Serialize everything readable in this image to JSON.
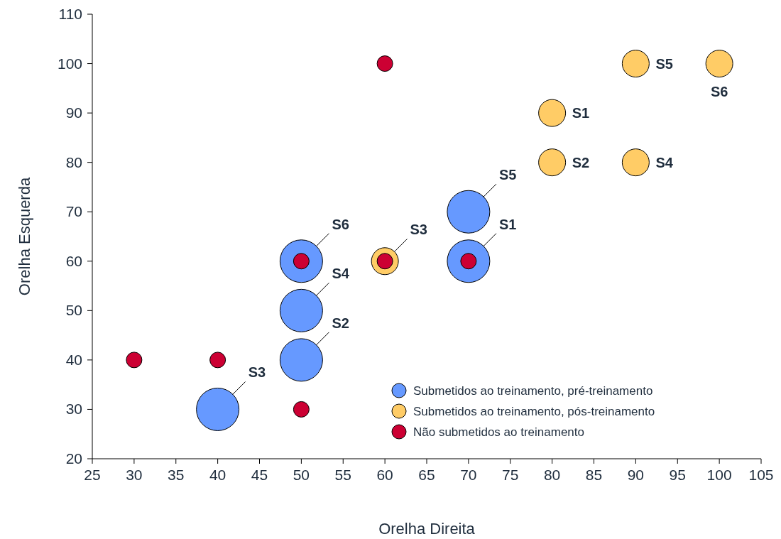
{
  "chart_data": {
    "type": "scatter",
    "xlabel": "Orelha Direita",
    "ylabel": "Orelha Esquerda",
    "xlim": [
      25,
      105
    ],
    "xticks": [
      25,
      30,
      35,
      40,
      45,
      50,
      55,
      60,
      65,
      70,
      75,
      80,
      85,
      90,
      95,
      100,
      105
    ],
    "ylim": [
      20,
      110
    ],
    "yticks": [
      20,
      30,
      40,
      50,
      60,
      70,
      80,
      90,
      100,
      110
    ],
    "marker": "circle",
    "legend": "bottom right",
    "grid": false,
    "series": [
      {
        "name": "Submetidos ao treinamento, pré-treinamento",
        "color": "#6699ff",
        "x": [
          70,
          50,
          40,
          50,
          70,
          50
        ],
        "values": [
          60,
          40,
          30,
          50,
          70,
          60
        ]
      },
      {
        "name": "Submetidos ao treinamento, pós-treinamento",
        "color": "#ffcc66",
        "x": [
          80,
          80,
          60,
          90,
          90,
          100
        ],
        "values": [
          90,
          80,
          60,
          80,
          100,
          100
        ]
      },
      {
        "name": "Não submetidos ao treinamento",
        "color": "#cc0033",
        "x": [
          60,
          50,
          60,
          70,
          30,
          40,
          50
        ],
        "values": [
          100,
          60,
          60,
          60,
          40,
          40,
          30
        ]
      }
    ],
    "annotations": [
      {
        "text": "S1",
        "x": 70,
        "y": 60
      },
      {
        "text": "S2",
        "x": 50,
        "y": 40
      },
      {
        "text": "S3",
        "x": 40,
        "y": 30
      },
      {
        "text": "S4",
        "x": 50,
        "y": 50
      },
      {
        "text": "S5",
        "x": 70,
        "y": 70
      },
      {
        "text": "S6",
        "x": 50,
        "y": 60
      },
      {
        "text": "S1",
        "x": 80,
        "y": 90
      },
      {
        "text": "S2",
        "x": 80,
        "y": 80
      },
      {
        "text": "S3",
        "x": 60,
        "y": 60
      },
      {
        "text": "S4",
        "x": 90,
        "y": 80
      },
      {
        "text": "S5",
        "x": 90,
        "y": 100
      },
      {
        "text": "S6",
        "x": 100,
        "y": 100
      }
    ]
  }
}
